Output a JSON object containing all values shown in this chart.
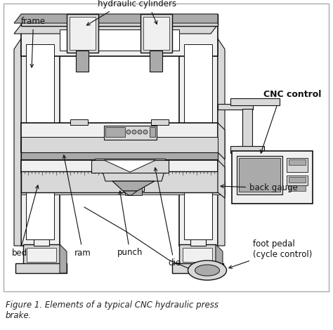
{
  "title": "Figure 1. Elements of a typical CNC hydraulic press\nbrake.",
  "labels": {
    "frame": "frame",
    "hydraulic_cylinders": "hydraulic cylinders",
    "cnc_control": "CNC control",
    "back_gauge": "back gauge",
    "bed": "bed",
    "ram": "ram",
    "punch": "punch",
    "die": "die",
    "foot_pedal": "foot pedal\n(cycle control)"
  },
  "lc": "#111111",
  "fc_light": "#f0f0f0",
  "fc_mid": "#d8d8d8",
  "fc_dark": "#aaaaaa",
  "fc_white": "#ffffff",
  "text_color": "#111111",
  "caption_color": "#222222",
  "border_color": "#999999"
}
